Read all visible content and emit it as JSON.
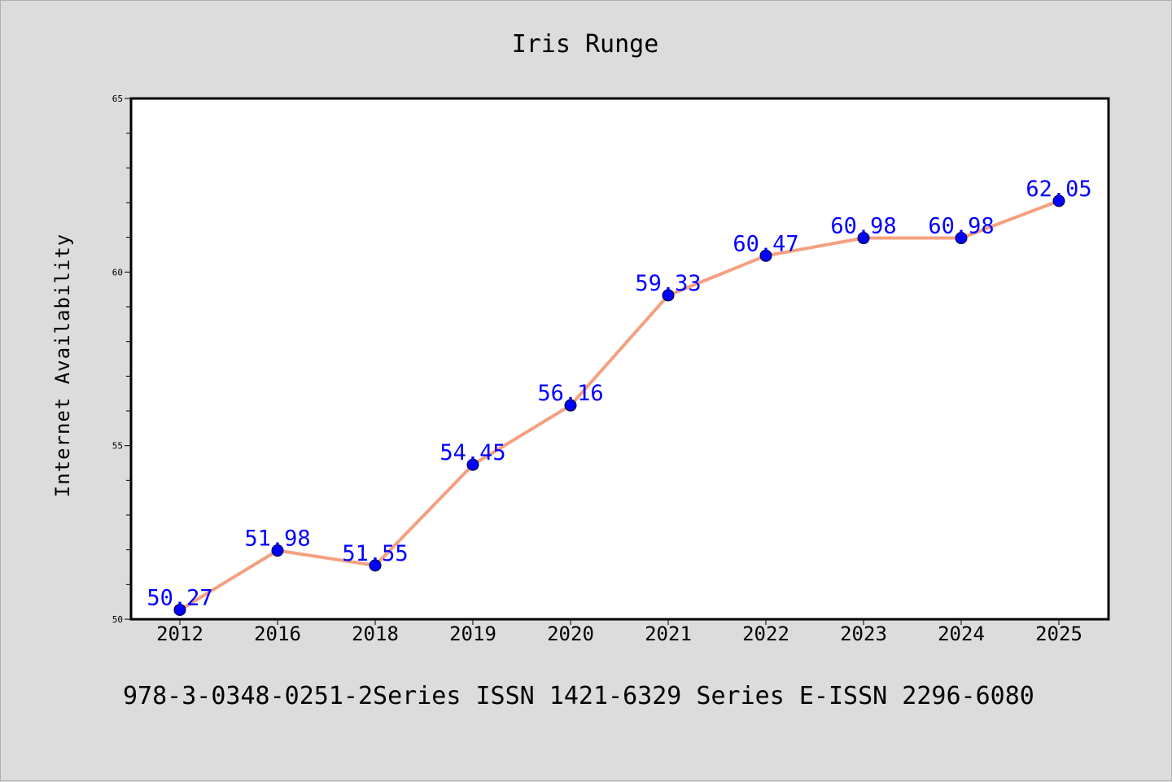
{
  "chart_data": {
    "type": "line",
    "title": "Iris Runge",
    "xlabel": "",
    "ylabel": "Internet Availability",
    "categories": [
      "2012",
      "2016",
      "2018",
      "2019",
      "2020",
      "2021",
      "2022",
      "2023",
      "2024",
      "2025"
    ],
    "values": [
      50.27,
      51.98,
      51.55,
      54.45,
      56.16,
      59.33,
      60.47,
      60.98,
      60.98,
      62.05
    ],
    "data_labels": [
      "50.27",
      "51.98",
      "51.55",
      "54.45",
      "56.16",
      "59.33",
      "60.47",
      "60.98",
      "60.98",
      "62.05"
    ],
    "ylim": [
      50,
      65
    ],
    "yticks": [
      50,
      55,
      60,
      65
    ],
    "grid": false,
    "colors": {
      "line": "#f4a080",
      "marker": "#0000ff",
      "label": "#0000ff",
      "background": "#dcdcdc",
      "plot_bg": "#ffffff"
    }
  },
  "footer": "978-3-0348-0251-2Series ISSN 1421-6329 Series E-ISSN 2296-6080"
}
